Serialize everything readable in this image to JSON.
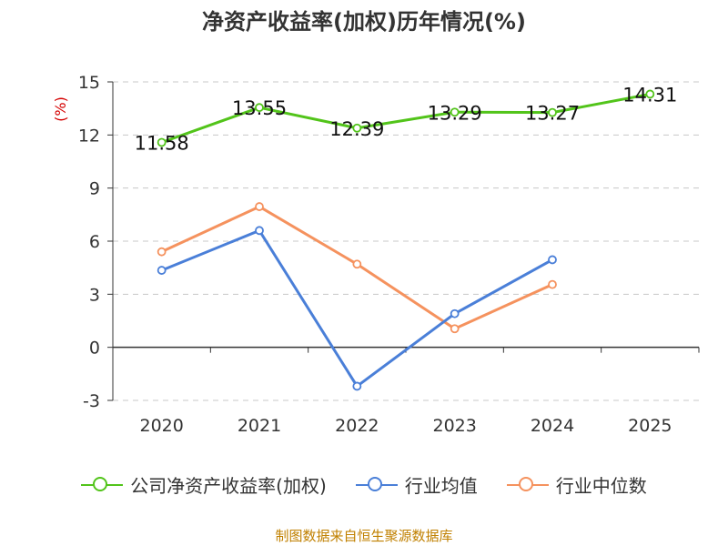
{
  "chart_data": {
    "type": "line",
    "title": "净资产收益率(加权)历年情况(%)",
    "ylabel": "(%)",
    "categories": [
      "2020",
      "2021",
      "2022",
      "2023",
      "2024",
      "2025"
    ],
    "ylim": [
      -3,
      15
    ],
    "yticks": [
      -3,
      0,
      3,
      6,
      9,
      12,
      15
    ],
    "grid": true,
    "legend_position": "bottom",
    "series": [
      {
        "name": "公司净资产收益率(加权)",
        "color": "#52c41a",
        "values": [
          11.58,
          13.55,
          12.39,
          13.29,
          13.27,
          14.31
        ],
        "labels": true
      },
      {
        "name": "行业均值",
        "color": "#4a7fd8",
        "values": [
          4.35,
          6.6,
          -2.2,
          1.9,
          4.95,
          null
        ],
        "labels": false
      },
      {
        "name": "行业中位数",
        "color": "#f5925e",
        "values": [
          5.4,
          7.95,
          4.7,
          1.05,
          3.55,
          null
        ],
        "labels": false
      }
    ]
  },
  "footer": {
    "source": "制图数据来自恒生聚源数据库"
  }
}
